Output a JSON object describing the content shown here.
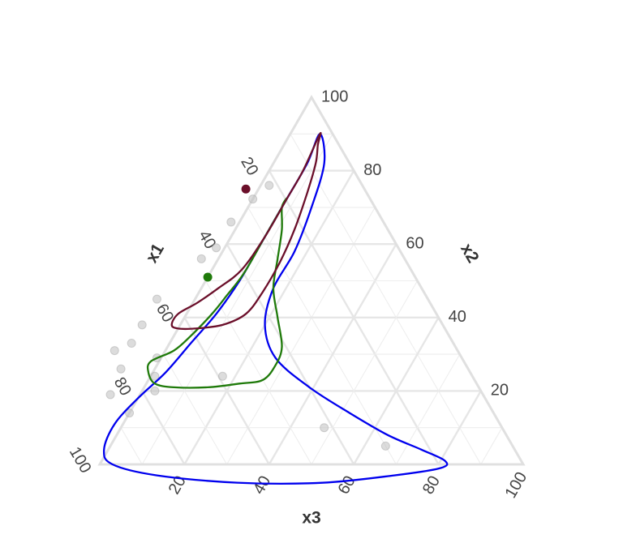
{
  "chart_data": {
    "type": "ternary",
    "axes": {
      "x1": {
        "label": "x1",
        "ticks": [
          20,
          40,
          60,
          80,
          100
        ]
      },
      "x2": {
        "label": "x2",
        "ticks": [
          20,
          40,
          60,
          80,
          100
        ]
      },
      "x3": {
        "label": "x3",
        "ticks": [
          20,
          40,
          60,
          80,
          100
        ]
      }
    },
    "grid": true,
    "points": [
      {
        "x1": 22,
        "x2": 76,
        "x3": 2
      },
      {
        "x1": 28,
        "x2": 73,
        "x3": 0
      },
      {
        "x1": 36,
        "x2": 66,
        "x3": -2
      },
      {
        "x1": 43,
        "x2": 59,
        "x3": -2
      },
      {
        "x1": 48,
        "x2": 56,
        "x3": -4
      },
      {
        "x1": 64,
        "x2": 45,
        "x3": -9
      },
      {
        "x1": 71,
        "x2": 38,
        "x3": -9
      },
      {
        "x1": 76,
        "x2": 33,
        "x3": -9
      },
      {
        "x1": 81,
        "x2": 31,
        "x3": -12
      },
      {
        "x1": 72,
        "x2": 29,
        "x3": -1
      },
      {
        "x1": 82,
        "x2": 26,
        "x3": -8
      },
      {
        "x1": 75,
        "x2": 24,
        "x3": 1
      },
      {
        "x1": 88,
        "x2": 19,
        "x3": -7
      },
      {
        "x1": 77,
        "x2": 20,
        "x3": 3
      },
      {
        "x1": 59,
        "x2": 24,
        "x3": 17
      },
      {
        "x1": 86,
        "x2": 14,
        "x3": 0
      },
      {
        "x1": 42,
        "x2": 10,
        "x3": 48
      },
      {
        "x1": 30,
        "x2": 5,
        "x3": 65
      }
    ],
    "centers": [
      {
        "name": "",
        "color": "#6b0f2a",
        "x1": 28,
        "x2": 75,
        "x3": -3
      },
      {
        "name": "",
        "color": "#1f7a0a",
        "x1": 49,
        "x2": 51,
        "x3": 0
      }
    ],
    "contours": [
      {
        "color": "#0000ee",
        "polygon": [
          [
            3,
            90,
            7
          ],
          [
            10,
            82,
            8
          ],
          [
            20,
            72,
            8
          ],
          [
            32,
            60,
            8
          ],
          [
            42,
            50,
            8
          ],
          [
            52,
            41,
            7
          ],
          [
            62,
            33,
            5
          ],
          [
            72,
            25,
            3
          ],
          [
            82,
            18,
            0
          ],
          [
            91,
            11,
            -2
          ],
          [
            97,
            4,
            -1
          ],
          [
            97,
            0,
            3
          ],
          [
            88,
            -3,
            15
          ],
          [
            70,
            -5,
            35
          ],
          [
            50,
            -5,
            55
          ],
          [
            32,
            -3,
            71
          ],
          [
            20,
            -1,
            81
          ],
          [
            18,
            1,
            81
          ],
          [
            22,
            4,
            74
          ],
          [
            28,
            8,
            64
          ],
          [
            34,
            14,
            52
          ],
          [
            40,
            21,
            39
          ],
          [
            44,
            29,
            27
          ],
          [
            42,
            38,
            20
          ],
          [
            35,
            48,
            17
          ],
          [
            25,
            58,
            17
          ],
          [
            15,
            70,
            15
          ],
          [
            6,
            82,
            12
          ],
          [
            3,
            90,
            7
          ]
        ]
      },
      {
        "color": "#1f7a0a",
        "polygon": [
          [
            20,
            72,
            8
          ],
          [
            30,
            62,
            8
          ],
          [
            40,
            52,
            8
          ],
          [
            47,
            46,
            7
          ],
          [
            53,
            41,
            6
          ],
          [
            61,
            35,
            4
          ],
          [
            67,
            31,
            2
          ],
          [
            74,
            28,
            -2
          ],
          [
            76,
            25,
            -1
          ],
          [
            76,
            22,
            2
          ],
          [
            72,
            21,
            7
          ],
          [
            64,
            21,
            15
          ],
          [
            56,
            22,
            22
          ],
          [
            50,
            23,
            27
          ],
          [
            45,
            27,
            28
          ],
          [
            41,
            32,
            27
          ],
          [
            38,
            40,
            22
          ],
          [
            35,
            48,
            17
          ],
          [
            30,
            56,
            14
          ],
          [
            25,
            64,
            11
          ],
          [
            22,
            70,
            8
          ],
          [
            20,
            72,
            8
          ]
        ]
      },
      {
        "color": "#6b0f2a",
        "polygon": [
          [
            3,
            90,
            7
          ],
          [
            12,
            80,
            8
          ],
          [
            20,
            72,
            8
          ],
          [
            30,
            62,
            8
          ],
          [
            40,
            53,
            7
          ],
          [
            48,
            48,
            4
          ],
          [
            55,
            44,
            1
          ],
          [
            61,
            41,
            -2
          ],
          [
            64,
            38,
            -2
          ],
          [
            63,
            37,
            0
          ],
          [
            59,
            37,
            4
          ],
          [
            52,
            38,
            10
          ],
          [
            45,
            41,
            14
          ],
          [
            38,
            47,
            15
          ],
          [
            30,
            55,
            15
          ],
          [
            22,
            64,
            14
          ],
          [
            14,
            74,
            12
          ],
          [
            8,
            82,
            10
          ],
          [
            5,
            87,
            8
          ],
          [
            3,
            90,
            7
          ]
        ]
      }
    ]
  }
}
